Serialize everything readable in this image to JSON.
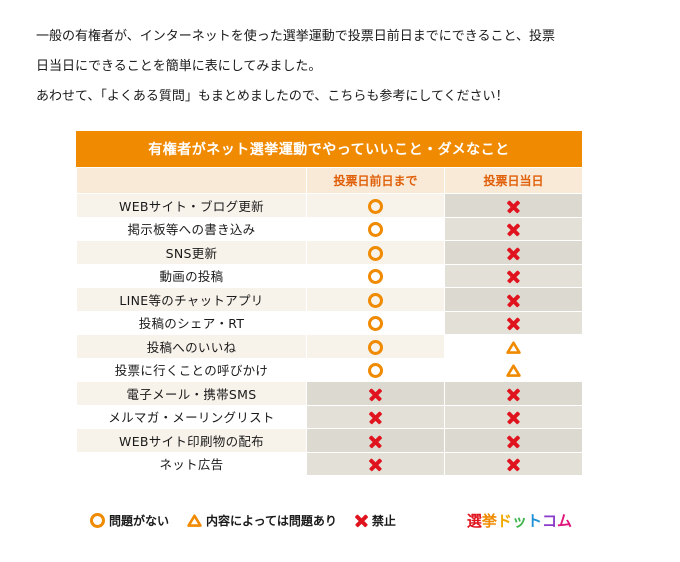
{
  "intro": {
    "line1": "一般の有権者が、インターネットを使った選挙運動で投票日前日までにできること、投票",
    "line2": "日当日にできることを簡単に表にしてみました。",
    "line3": "あわせて、「よくある質問」もまとめましたので、こちらも参考にしてください！"
  },
  "table": {
    "title": "有権者がネット選挙運動でやっていいこと・ダメなこと",
    "col_before": "投票日前日まで",
    "col_day": "投票日当日",
    "rows": [
      {
        "label": "WEBサイト・ブログ更新",
        "before": "ok",
        "day": "ng"
      },
      {
        "label": "掲示板等への書き込み",
        "before": "ok",
        "day": "ng"
      },
      {
        "label": "SNS更新",
        "before": "ok",
        "day": "ng"
      },
      {
        "label": "動画の投稿",
        "before": "ok",
        "day": "ng"
      },
      {
        "label": "LINE等のチャットアプリ",
        "before": "ok",
        "day": "ng"
      },
      {
        "label": "投稿のシェア・RT",
        "before": "ok",
        "day": "ng"
      },
      {
        "label": "投稿へのいいね",
        "before": "ok",
        "day": "maybe"
      },
      {
        "label": "投票に行くことの呼びかけ",
        "before": "ok",
        "day": "maybe"
      },
      {
        "label": "電子メール・携帯SMS",
        "before": "ng",
        "day": "ng"
      },
      {
        "label": "メルマガ・メーリングリスト",
        "before": "ng",
        "day": "ng"
      },
      {
        "label": "WEBサイト印刷物の配布",
        "before": "ng",
        "day": "ng"
      },
      {
        "label": "ネット広告",
        "before": "ng",
        "day": "ng"
      }
    ]
  },
  "legend": {
    "ok_label": "問題がない",
    "maybe_label": "内容によっては問題あり",
    "ng_label": "禁止",
    "logo_text": "選挙ドットコム"
  },
  "colors": {
    "orange": "#f08a00",
    "red": "#e0141e",
    "header_bg": "#f8ead7"
  }
}
